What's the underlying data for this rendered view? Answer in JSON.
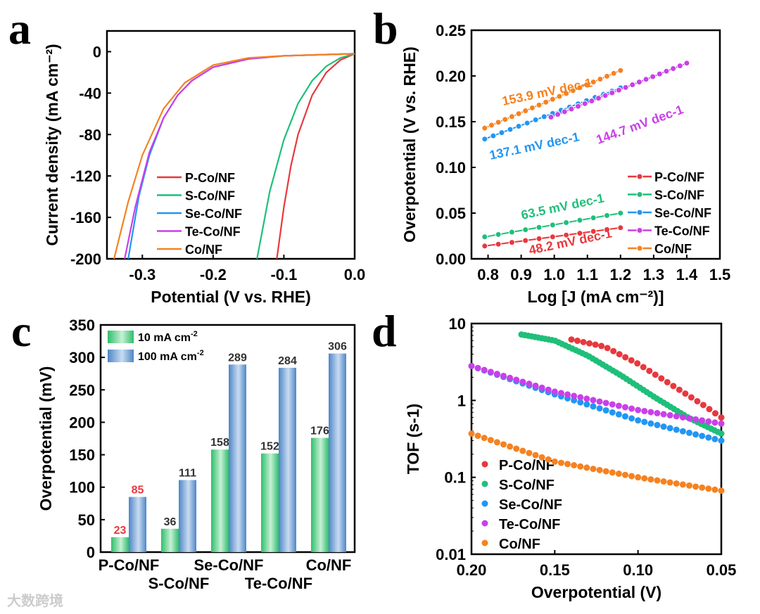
{
  "colors": {
    "P-Co/NF": "#e8383d",
    "S-Co/NF": "#1fbf7a",
    "Se-Co/NF": "#2196f3",
    "Te-Co/NF": "#c940e8",
    "Co/NF": "#f58220"
  },
  "watermark": "大数跨境",
  "chart_data": [
    {
      "panel": "a",
      "type": "line",
      "xlabel": "Potential (V vs. RHE)",
      "ylabel": "Current density (mA cm⁻²)",
      "xlim": [
        -0.35,
        0
      ],
      "ylim": [
        -200,
        20
      ],
      "xticks": [
        -0.3,
        -0.2,
        -0.1,
        0.0
      ],
      "xtick_labels": [
        "-0.3",
        "-0.2",
        "-0.1",
        "0.0"
      ],
      "yticks": [
        0,
        -40,
        -80,
        -120,
        -160,
        -200
      ],
      "ytick_labels": [
        "0",
        "-40",
        "-80",
        "-120",
        "-160",
        "-200"
      ],
      "legend": "bottom-center",
      "series": [
        {
          "name": "P-Co/NF",
          "x": [
            0,
            -0.02,
            -0.04,
            -0.06,
            -0.08,
            -0.09,
            -0.1,
            -0.11
          ],
          "y": [
            -2,
            -8,
            -20,
            -42,
            -80,
            -110,
            -150,
            -200
          ]
        },
        {
          "name": "S-Co/NF",
          "x": [
            0,
            -0.02,
            -0.04,
            -0.06,
            -0.08,
            -0.1,
            -0.12,
            -0.138
          ],
          "y": [
            -2,
            -6,
            -14,
            -28,
            -50,
            -85,
            -135,
            -200
          ]
        },
        {
          "name": "Se-Co/NF",
          "x": [
            0,
            -0.1,
            -0.15,
            -0.2,
            -0.23,
            -0.25,
            -0.27,
            -0.29,
            -0.305,
            -0.32
          ],
          "y": [
            -2,
            -4,
            -7,
            -15,
            -28,
            -42,
            -64,
            -100,
            -140,
            -200
          ]
        },
        {
          "name": "Te-Co/NF",
          "x": [
            0,
            -0.1,
            -0.15,
            -0.2,
            -0.23,
            -0.25,
            -0.27,
            -0.29,
            -0.31,
            -0.325
          ],
          "y": [
            -2,
            -4,
            -7,
            -15,
            -28,
            -42,
            -64,
            -97,
            -150,
            -200
          ]
        },
        {
          "name": "Co/NF",
          "x": [
            0,
            -0.1,
            -0.15,
            -0.2,
            -0.24,
            -0.27,
            -0.3,
            -0.32,
            -0.34
          ],
          "y": [
            -2,
            -4,
            -6,
            -13,
            -30,
            -55,
            -100,
            -145,
            -200
          ]
        }
      ]
    },
    {
      "panel": "b",
      "type": "line",
      "xlabel": "Log [J (mA cm⁻²)]",
      "ylabel": "Overpotential (V vs. RHE)",
      "xlim": [
        0.75,
        1.5
      ],
      "ylim": [
        0,
        0.25
      ],
      "xticks": [
        0.8,
        0.9,
        1.0,
        1.1,
        1.2,
        1.3,
        1.4,
        1.5
      ],
      "xtick_labels": [
        "0.8",
        "0.9",
        "1.0",
        "1.1",
        "1.2",
        "1.3",
        "1.4",
        "1.5"
      ],
      "yticks": [
        0,
        0.05,
        0.1,
        0.15,
        0.2,
        0.25
      ],
      "ytick_labels": [
        "0.00",
        "0.05",
        "0.10",
        "0.15",
        "0.20",
        "0.25"
      ],
      "legend": "bottom-right",
      "series": [
        {
          "name": "P-Co/NF",
          "x": [
            0.79,
            1.2
          ],
          "y": [
            0.014,
            0.034
          ],
          "points": 11,
          "tafel": "48.2 mV dec-1"
        },
        {
          "name": "S-Co/NF",
          "x": [
            0.79,
            1.2
          ],
          "y": [
            0.024,
            0.05
          ],
          "points": 11,
          "tafel": "63.5 mV dec-1"
        },
        {
          "name": "Se-Co/NF",
          "x": [
            0.79,
            1.2
          ],
          "y": [
            0.131,
            0.187
          ],
          "points": 17,
          "tafel": "137.1 mV dec-1"
        },
        {
          "name": "Te-Co/NF",
          "x": [
            0.99,
            1.4
          ],
          "y": [
            0.155,
            0.214
          ],
          "points": 21,
          "tafel": "144.7 mV dec-1"
        },
        {
          "name": "Co/NF",
          "x": [
            0.79,
            1.2
          ],
          "y": [
            0.143,
            0.206
          ],
          "points": 21,
          "tafel": "153.9 mV dec-1"
        }
      ]
    },
    {
      "panel": "c",
      "type": "bar",
      "ylabel": "Overpotential (mV)",
      "ylim": [
        0,
        350
      ],
      "yticks": [
        0,
        50,
        100,
        150,
        200,
        250,
        300,
        350
      ],
      "categories": [
        "P-Co/NF",
        "S-Co/NF",
        "Se-Co/NF",
        "Te-Co/NF",
        "Co/NF"
      ],
      "legend": "top-left",
      "series": [
        {
          "name": "10 mA cm-2",
          "values": [
            23,
            36,
            158,
            152,
            176
          ]
        },
        {
          "name": "100 mA cm-2",
          "values": [
            85,
            111,
            289,
            284,
            306
          ]
        }
      ]
    },
    {
      "panel": "d",
      "type": "scatter",
      "xlabel": "Overpotential (V)",
      "ylabel": "TOF (s-1)",
      "xlim": [
        0.2,
        0.05
      ],
      "ylim": [
        0.01,
        10
      ],
      "yscale": "log",
      "xticks": [
        0.2,
        0.15,
        0.1,
        0.05
      ],
      "xtick_labels": [
        "0.20",
        "0.15",
        "0.10",
        "0.05"
      ],
      "yticks": [
        0.01,
        0.1,
        1,
        10
      ],
      "ytick_labels": [
        "0.01",
        "0.1",
        "1",
        "10"
      ],
      "legend": "bottom-left",
      "series": [
        {
          "name": "P-Co/NF",
          "x": [
            0.14,
            0.12,
            0.1,
            0.08,
            0.06,
            0.05
          ],
          "y": [
            6.2,
            5.0,
            3.0,
            1.6,
            0.85,
            0.6
          ],
          "points": 26
        },
        {
          "name": "S-Co/NF",
          "x": [
            0.17,
            0.15,
            0.13,
            0.11,
            0.09,
            0.07,
            0.05
          ],
          "y": [
            7.2,
            6.0,
            3.8,
            2.1,
            1.1,
            0.6,
            0.37
          ],
          "points": 60
        },
        {
          "name": "Se-Co/NF",
          "x": [
            0.2,
            0.15,
            0.1,
            0.05
          ],
          "y": [
            2.8,
            1.2,
            0.55,
            0.3
          ],
          "points": 40
        },
        {
          "name": "Te-Co/NF",
          "x": [
            0.2,
            0.15,
            0.1,
            0.05
          ],
          "y": [
            2.8,
            1.3,
            0.75,
            0.5
          ],
          "points": 40
        },
        {
          "name": "Co/NF",
          "x": [
            0.2,
            0.15,
            0.1,
            0.05
          ],
          "y": [
            0.37,
            0.16,
            0.1,
            0.067
          ],
          "points": 40
        }
      ]
    }
  ],
  "panel_letters": [
    "a",
    "b",
    "c",
    "d"
  ]
}
